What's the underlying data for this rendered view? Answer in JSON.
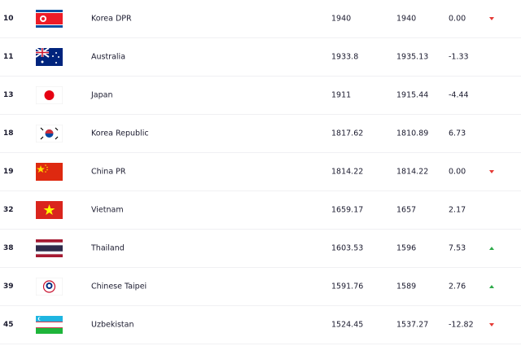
{
  "colors": {
    "down": "#e53935",
    "up": "#2eaa4a"
  },
  "rows": [
    {
      "rank": "10",
      "team": "Korea DPR",
      "flag": "flag-korea-dpr",
      "points": "1940",
      "previous": "1940",
      "change": "0.00",
      "trend": "down"
    },
    {
      "rank": "11",
      "team": "Australia",
      "flag": "flag-australia",
      "points": "1933.8",
      "previous": "1935.13",
      "change": "-1.33",
      "trend": "none"
    },
    {
      "rank": "13",
      "team": "Japan",
      "flag": "flag-japan",
      "points": "1911",
      "previous": "1915.44",
      "change": "-4.44",
      "trend": "none"
    },
    {
      "rank": "18",
      "team": "Korea Republic",
      "flag": "flag-korea-republic",
      "points": "1817.62",
      "previous": "1810.89",
      "change": "6.73",
      "trend": "none"
    },
    {
      "rank": "19",
      "team": "China PR",
      "flag": "flag-china",
      "points": "1814.22",
      "previous": "1814.22",
      "change": "0.00",
      "trend": "down"
    },
    {
      "rank": "32",
      "team": "Vietnam",
      "flag": "flag-vietnam",
      "points": "1659.17",
      "previous": "1657",
      "change": "2.17",
      "trend": "none"
    },
    {
      "rank": "38",
      "team": "Thailand",
      "flag": "flag-thailand",
      "points": "1603.53",
      "previous": "1596",
      "change": "7.53",
      "trend": "up"
    },
    {
      "rank": "39",
      "team": "Chinese Taipei",
      "flag": "flag-chinese-taipei",
      "points": "1591.76",
      "previous": "1589",
      "change": "2.76",
      "trend": "up"
    },
    {
      "rank": "45",
      "team": "Uzbekistan",
      "flag": "flag-uzbekistan",
      "points": "1524.45",
      "previous": "1537.27",
      "change": "-12.82",
      "trend": "down"
    }
  ]
}
